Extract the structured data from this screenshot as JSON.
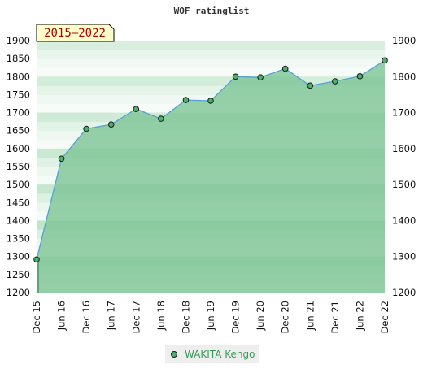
{
  "chart_data": {
    "type": "line",
    "title": "WOF ratinglist",
    "period_badge": "2015–2022",
    "x": [
      "Dec 15",
      "Jun 16",
      "Dec 16",
      "Jun 17",
      "Dec 17",
      "Jun 18",
      "Dec 18",
      "Jun 19",
      "Dec 19",
      "Jun 20",
      "Dec 20",
      "Jun 21",
      "Dec 21",
      "Jun 22",
      "Dec 22"
    ],
    "series": [
      {
        "name": "WAKITA Kengo",
        "values": [
          1292,
          1572,
          1655,
          1667,
          1710,
          1683,
          1735,
          1733,
          1800,
          1798,
          1822,
          1775,
          1787,
          1801,
          1845
        ]
      }
    ],
    "ylim": [
      1200,
      1900
    ],
    "yticks": [
      1200,
      1250,
      1300,
      1350,
      1400,
      1450,
      1500,
      1550,
      1600,
      1650,
      1700,
      1750,
      1800,
      1850,
      1900
    ],
    "right_yticks": [
      1200,
      1300,
      1400,
      1500,
      1600,
      1700,
      1800,
      1900
    ],
    "legend_position": "bottom-center",
    "colors": {
      "line": "#5a9fd4",
      "fill": "#7dc495",
      "marker": "#4caf6a"
    }
  }
}
